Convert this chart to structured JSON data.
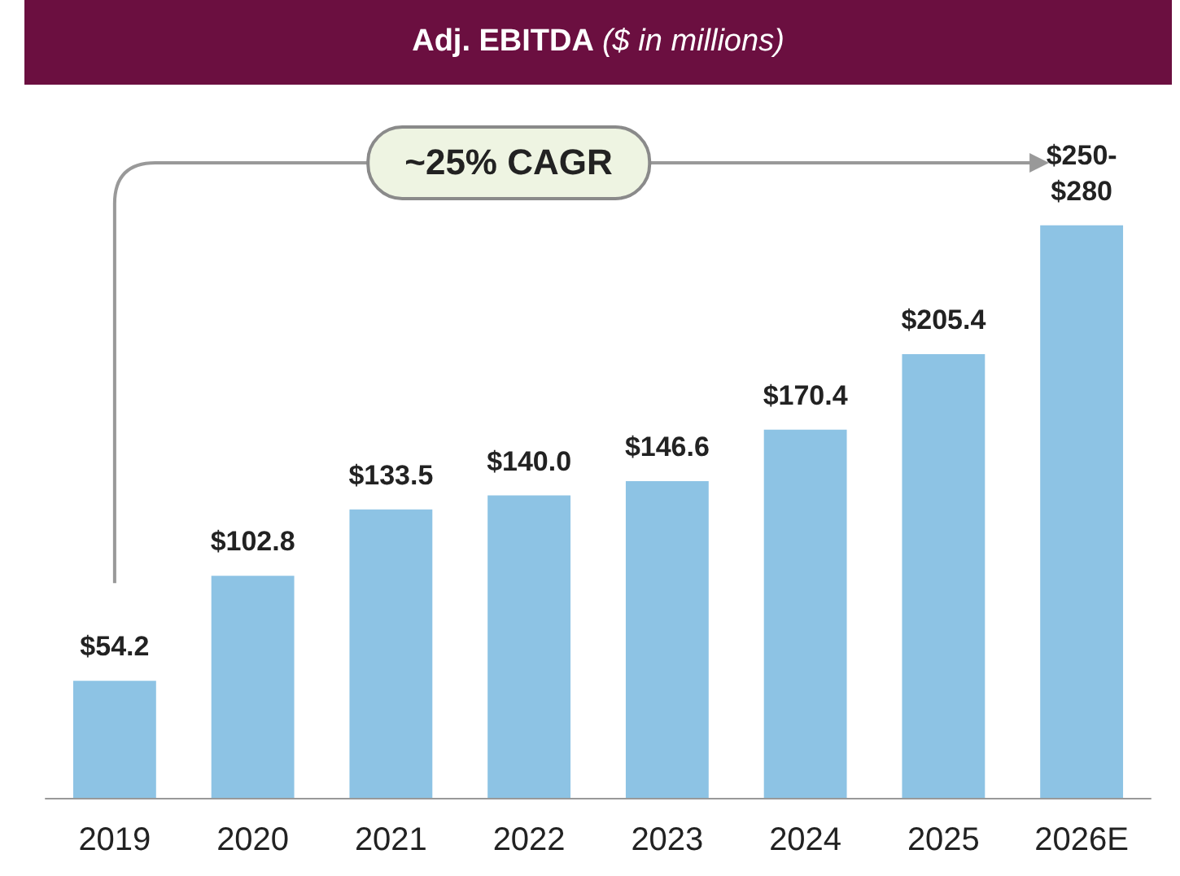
{
  "chart_data": {
    "type": "bar",
    "title": "Adj. EBITDA ($ in millions)",
    "categories": [
      "2019",
      "2020",
      "2021",
      "2022",
      "2023",
      "2024",
      "2025",
      "2026E"
    ],
    "values": [
      54.2,
      102.8,
      133.5,
      140.0,
      146.6,
      170.4,
      205.4,
      265
    ],
    "value_labels": [
      "$54.2",
      "$102.8",
      "$133.5",
      "$140.0",
      "$146.6",
      "$170.4",
      "$205.4",
      "$250-\n$280"
    ],
    "color": "#8dc3e4",
    "annotations": [
      "~25% CAGR"
    ]
  }
}
